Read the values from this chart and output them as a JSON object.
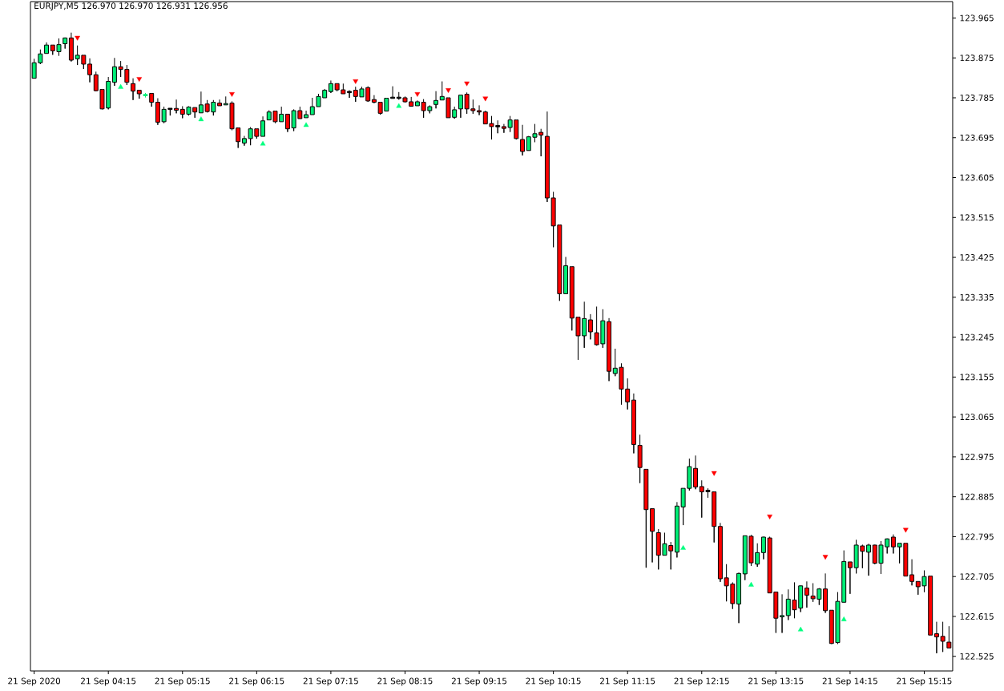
{
  "chart_data": {
    "type": "candlestick",
    "title": "EURJPY,M5 126.970 126.970 126.931 126.956",
    "x": [
      "2020-09-21T03:15",
      "2020-09-21T03:20",
      "2020-09-21T03:25",
      "2020-09-21T03:30",
      "2020-09-21T03:35",
      "2020-09-21T03:40",
      "2020-09-21T03:45",
      "2020-09-21T03:50",
      "2020-09-21T03:55",
      "2020-09-21T04:00",
      "2020-09-21T04:05",
      "2020-09-21T04:10",
      "2020-09-21T04:15",
      "2020-09-21T04:20",
      "2020-09-21T04:25",
      "2020-09-21T04:30",
      "2020-09-21T04:35",
      "2020-09-21T04:40",
      "2020-09-21T04:45",
      "2020-09-21T04:50",
      "2020-09-21T04:55",
      "2020-09-21T05:00",
      "2020-09-21T05:05",
      "2020-09-21T05:10",
      "2020-09-21T05:15",
      "2020-09-21T05:20",
      "2020-09-21T05:25",
      "2020-09-21T05:30",
      "2020-09-21T05:35",
      "2020-09-21T05:40",
      "2020-09-21T05:45",
      "2020-09-21T05:50",
      "2020-09-21T05:55",
      "2020-09-21T06:00",
      "2020-09-21T06:05",
      "2020-09-21T06:10",
      "2020-09-21T06:15",
      "2020-09-21T06:20",
      "2020-09-21T06:25",
      "2020-09-21T06:30",
      "2020-09-21T06:35",
      "2020-09-21T06:40",
      "2020-09-21T06:45",
      "2020-09-21T06:50",
      "2020-09-21T06:55",
      "2020-09-21T07:00",
      "2020-09-21T07:05",
      "2020-09-21T07:10",
      "2020-09-21T07:15",
      "2020-09-21T07:20",
      "2020-09-21T07:25",
      "2020-09-21T07:30",
      "2020-09-21T07:35",
      "2020-09-21T07:40",
      "2020-09-21T07:45",
      "2020-09-21T07:50",
      "2020-09-21T07:55",
      "2020-09-21T08:00",
      "2020-09-21T08:05",
      "2020-09-21T08:10",
      "2020-09-21T08:15",
      "2020-09-21T08:20",
      "2020-09-21T08:25",
      "2020-09-21T08:30",
      "2020-09-21T08:35",
      "2020-09-21T08:40",
      "2020-09-21T08:45",
      "2020-09-21T08:50",
      "2020-09-21T08:55",
      "2020-09-21T09:00",
      "2020-09-21T09:05",
      "2020-09-21T09:10",
      "2020-09-21T09:15",
      "2020-09-21T09:20",
      "2020-09-21T09:25",
      "2020-09-21T09:30",
      "2020-09-21T09:35",
      "2020-09-21T09:40",
      "2020-09-21T09:45",
      "2020-09-21T09:50",
      "2020-09-21T09:55",
      "2020-09-21T10:00",
      "2020-09-21T10:05",
      "2020-09-21T10:10",
      "2020-09-21T10:15",
      "2020-09-21T10:20",
      "2020-09-21T10:25",
      "2020-09-21T10:30",
      "2020-09-21T10:35",
      "2020-09-21T10:40",
      "2020-09-21T10:45",
      "2020-09-21T10:50",
      "2020-09-21T10:55",
      "2020-09-21T11:00",
      "2020-09-21T11:05",
      "2020-09-21T11:10",
      "2020-09-21T11:15",
      "2020-09-21T11:20",
      "2020-09-21T11:25",
      "2020-09-21T11:30",
      "2020-09-21T11:35",
      "2020-09-21T11:40",
      "2020-09-21T11:45",
      "2020-09-21T11:50",
      "2020-09-21T11:55",
      "2020-09-21T12:00",
      "2020-09-21T12:05",
      "2020-09-21T12:10",
      "2020-09-21T12:15",
      "2020-09-21T12:20",
      "2020-09-21T12:25",
      "2020-09-21T12:30",
      "2020-09-21T12:35",
      "2020-09-21T12:40",
      "2020-09-21T12:45",
      "2020-09-21T12:50",
      "2020-09-21T12:55",
      "2020-09-21T13:00",
      "2020-09-21T13:05",
      "2020-09-21T13:10",
      "2020-09-21T13:15",
      "2020-09-21T13:20",
      "2020-09-21T13:25",
      "2020-09-21T13:30",
      "2020-09-21T13:35",
      "2020-09-21T13:40",
      "2020-09-21T13:45",
      "2020-09-21T13:50",
      "2020-09-21T13:55",
      "2020-09-21T14:00",
      "2020-09-21T14:05",
      "2020-09-21T14:10",
      "2020-09-21T14:15",
      "2020-09-21T14:20",
      "2020-09-21T14:25",
      "2020-09-21T14:30",
      "2020-09-21T14:35",
      "2020-09-21T14:40",
      "2020-09-21T14:45",
      "2020-09-21T14:50",
      "2020-09-21T14:55",
      "2020-09-21T15:00",
      "2020-09-21T15:05",
      "2020-09-21T15:10",
      "2020-09-21T15:15",
      "2020-09-21T15:20",
      "2020-09-21T15:25",
      "2020-09-21T15:30",
      "2020-09-21T15:35"
    ],
    "ohlc": [
      [
        123.829,
        123.873,
        123.829,
        123.864
      ],
      [
        123.864,
        123.894,
        123.861,
        123.884
      ],
      [
        123.885,
        123.91,
        123.885,
        123.904
      ],
      [
        123.904,
        123.904,
        123.882,
        123.891
      ],
      [
        123.889,
        123.919,
        123.88,
        123.905
      ],
      [
        123.907,
        123.921,
        123.896,
        123.92
      ],
      [
        123.92,
        123.932,
        123.867,
        123.87
      ],
      [
        123.873,
        123.903,
        123.859,
        123.881
      ],
      [
        123.881,
        123.881,
        123.85,
        123.861
      ],
      [
        123.861,
        123.874,
        123.82,
        123.837
      ],
      [
        123.837,
        123.844,
        123.8,
        123.801
      ],
      [
        123.804,
        123.804,
        123.759,
        123.76
      ],
      [
        123.762,
        123.832,
        123.759,
        123.822
      ],
      [
        123.82,
        123.875,
        123.812,
        123.855
      ],
      [
        123.855,
        123.868,
        123.832,
        123.849
      ],
      [
        123.849,
        123.859,
        123.814,
        123.82
      ],
      [
        123.817,
        123.829,
        123.78,
        123.8
      ],
      [
        123.802,
        123.802,
        123.783,
        123.794
      ],
      [
        123.791,
        123.796,
        123.786,
        123.791
      ],
      [
        123.795,
        123.795,
        123.765,
        123.775
      ],
      [
        123.775,
        123.784,
        123.724,
        123.73
      ],
      [
        123.731,
        123.765,
        123.728,
        123.759
      ],
      [
        123.76,
        123.76,
        123.745,
        123.76
      ],
      [
        123.761,
        123.781,
        123.75,
        123.757
      ],
      [
        123.759,
        123.766,
        123.739,
        123.748
      ],
      [
        123.748,
        123.766,
        123.745,
        123.764
      ],
      [
        123.763,
        123.763,
        123.74,
        123.753
      ],
      [
        123.751,
        123.799,
        123.751,
        123.769
      ],
      [
        123.771,
        123.78,
        123.752,
        123.754
      ],
      [
        123.753,
        123.78,
        123.745,
        123.775
      ],
      [
        123.773,
        123.781,
        123.767,
        123.767
      ],
      [
        123.769,
        123.788,
        123.769,
        123.772
      ],
      [
        123.773,
        123.777,
        123.712,
        123.715
      ],
      [
        123.717,
        123.717,
        123.672,
        123.686
      ],
      [
        123.683,
        123.699,
        123.677,
        123.693
      ],
      [
        123.693,
        123.719,
        123.678,
        123.715
      ],
      [
        123.715,
        123.715,
        123.693,
        123.698
      ],
      [
        123.698,
        123.743,
        123.698,
        123.733
      ],
      [
        123.735,
        123.757,
        123.735,
        123.753
      ],
      [
        123.755,
        123.755,
        123.728,
        123.731
      ],
      [
        123.731,
        123.765,
        123.731,
        123.748
      ],
      [
        123.748,
        123.748,
        123.708,
        123.715
      ],
      [
        123.717,
        123.759,
        123.71,
        123.756
      ],
      [
        123.756,
        123.765,
        123.738,
        123.738
      ],
      [
        123.74,
        123.756,
        123.74,
        123.747
      ],
      [
        123.747,
        123.785,
        123.747,
        123.765
      ],
      [
        123.765,
        123.794,
        123.765,
        123.788
      ],
      [
        123.785,
        123.805,
        123.785,
        123.802
      ],
      [
        123.799,
        123.824,
        123.796,
        123.817
      ],
      [
        123.817,
        123.817,
        123.8,
        123.803
      ],
      [
        123.803,
        123.817,
        123.794,
        123.794
      ],
      [
        123.798,
        123.802,
        123.785,
        123.798
      ],
      [
        123.802,
        123.81,
        123.776,
        123.788
      ],
      [
        123.787,
        123.81,
        123.787,
        123.805
      ],
      [
        123.808,
        123.811,
        123.776,
        123.778
      ],
      [
        123.781,
        123.791,
        123.773,
        123.775
      ],
      [
        123.775,
        123.775,
        123.747,
        123.75
      ],
      [
        123.755,
        123.784,
        123.755,
        123.784
      ],
      [
        123.785,
        123.811,
        123.785,
        123.785
      ],
      [
        123.785,
        123.798,
        123.781,
        123.785
      ],
      [
        123.785,
        123.788,
        123.774,
        123.776
      ],
      [
        123.776,
        123.787,
        123.766,
        123.766
      ],
      [
        123.767,
        123.779,
        123.767,
        123.776
      ],
      [
        123.775,
        123.782,
        123.74,
        123.756
      ],
      [
        123.756,
        123.768,
        123.75,
        123.765
      ],
      [
        123.77,
        123.8,
        123.761,
        123.779
      ],
      [
        123.78,
        123.822,
        123.78,
        123.788
      ],
      [
        123.785,
        123.785,
        123.74,
        123.74
      ],
      [
        123.741,
        123.765,
        123.738,
        123.758
      ],
      [
        123.76,
        123.791,
        123.74,
        123.791
      ],
      [
        123.793,
        123.797,
        123.749,
        123.76
      ],
      [
        123.76,
        123.781,
        123.749,
        123.756
      ],
      [
        123.756,
        123.768,
        123.746,
        123.753
      ],
      [
        123.753,
        123.756,
        123.726,
        123.726
      ],
      [
        123.727,
        123.744,
        123.691,
        123.72
      ],
      [
        123.721,
        123.734,
        123.705,
        123.721
      ],
      [
        123.72,
        123.726,
        123.706,
        123.716
      ],
      [
        123.718,
        123.744,
        123.708,
        123.735
      ],
      [
        123.735,
        123.735,
        123.691,
        123.693
      ],
      [
        123.691,
        123.724,
        123.655,
        123.664
      ],
      [
        123.666,
        123.699,
        123.666,
        123.697
      ],
      [
        123.696,
        123.726,
        123.685,
        123.704
      ],
      [
        123.707,
        123.715,
        123.653,
        123.701
      ],
      [
        123.698,
        123.754,
        123.55,
        123.559
      ],
      [
        123.559,
        123.573,
        123.448,
        123.496
      ],
      [
        123.498,
        123.498,
        123.327,
        123.343
      ],
      [
        123.343,
        123.426,
        123.343,
        123.406
      ],
      [
        123.404,
        123.404,
        123.26,
        123.288
      ],
      [
        123.29,
        123.29,
        123.194,
        123.248
      ],
      [
        123.248,
        123.325,
        123.221,
        123.287
      ],
      [
        123.284,
        123.297,
        123.24,
        123.257
      ],
      [
        123.255,
        123.314,
        123.226,
        123.228
      ],
      [
        123.23,
        123.308,
        123.221,
        123.282
      ],
      [
        123.28,
        123.288,
        123.146,
        123.168
      ],
      [
        123.163,
        123.219,
        123.157,
        123.175
      ],
      [
        123.177,
        123.186,
        123.093,
        123.128
      ],
      [
        123.128,
        123.152,
        123.082,
        123.099
      ],
      [
        123.103,
        123.118,
        122.983,
        123.003
      ],
      [
        123.001,
        123.025,
        122.916,
        122.951
      ],
      [
        122.947,
        122.947,
        122.725,
        122.856
      ],
      [
        122.858,
        122.858,
        122.737,
        122.807
      ],
      [
        122.804,
        122.812,
        122.721,
        122.753
      ],
      [
        122.753,
        122.804,
        122.753,
        122.779
      ],
      [
        122.775,
        122.783,
        122.721,
        122.763
      ],
      [
        122.76,
        122.873,
        122.748,
        122.864
      ],
      [
        122.862,
        122.904,
        122.821,
        122.904
      ],
      [
        122.904,
        122.971,
        122.899,
        122.953
      ],
      [
        122.949,
        122.978,
        122.902,
        122.907
      ],
      [
        122.908,
        122.922,
        122.838,
        122.896
      ],
      [
        122.898,
        122.904,
        122.883,
        122.898
      ],
      [
        122.896,
        122.896,
        122.782,
        122.818
      ],
      [
        122.818,
        122.826,
        122.693,
        122.7
      ],
      [
        122.702,
        122.733,
        122.649,
        122.684
      ],
      [
        122.688,
        122.692,
        122.632,
        122.644
      ],
      [
        122.643,
        122.714,
        122.6,
        122.712
      ],
      [
        122.711,
        122.797,
        122.697,
        122.797
      ],
      [
        122.796,
        122.799,
        122.729,
        122.736
      ],
      [
        122.733,
        122.78,
        122.727,
        122.759
      ],
      [
        122.759,
        122.795,
        122.744,
        122.794
      ],
      [
        122.792,
        122.795,
        122.668,
        122.668
      ],
      [
        122.67,
        122.67,
        122.578,
        122.611
      ],
      [
        122.614,
        122.665,
        122.578,
        122.617
      ],
      [
        122.617,
        122.676,
        122.607,
        122.654
      ],
      [
        122.652,
        122.692,
        122.611,
        122.63
      ],
      [
        122.634,
        122.685,
        122.625,
        122.684
      ],
      [
        122.679,
        122.694,
        122.635,
        122.663
      ],
      [
        122.661,
        122.69,
        122.648,
        122.655
      ],
      [
        122.654,
        122.679,
        122.641,
        122.677
      ],
      [
        122.677,
        122.712,
        122.623,
        122.628
      ],
      [
        122.629,
        122.629,
        122.553,
        122.554
      ],
      [
        122.556,
        122.67,
        122.553,
        122.649
      ],
      [
        122.647,
        122.764,
        122.647,
        122.739
      ],
      [
        122.738,
        122.738,
        122.666,
        122.725
      ],
      [
        122.725,
        122.788,
        122.712,
        122.776
      ],
      [
        122.774,
        122.777,
        122.724,
        122.762
      ],
      [
        122.76,
        122.779,
        122.707,
        122.776
      ],
      [
        122.776,
        122.777,
        122.733,
        122.735
      ],
      [
        122.735,
        122.785,
        122.711,
        122.776
      ],
      [
        122.772,
        122.791,
        122.757,
        122.79
      ],
      [
        122.794,
        122.8,
        122.757,
        122.772
      ],
      [
        122.772,
        122.78,
        122.735,
        122.78
      ],
      [
        122.78,
        122.78,
        122.706,
        122.706
      ],
      [
        122.709,
        122.744,
        122.685,
        122.694
      ],
      [
        122.694,
        122.694,
        122.664,
        122.682
      ],
      [
        122.684,
        122.719,
        122.67,
        122.705
      ],
      [
        122.706,
        122.706,
        122.573,
        122.573
      ],
      [
        122.576,
        122.603,
        122.532,
        122.569
      ],
      [
        122.57,
        122.603,
        122.535,
        122.559
      ],
      [
        122.557,
        122.593,
        122.544,
        122.544
      ]
    ],
    "colors": [
      "#00ee76",
      "#00ee76",
      "#00ee76",
      "#ff0000",
      "#00ee76",
      "#00ee76",
      "#ff0000",
      "#00ee76",
      "#ff0000",
      "#ff0000",
      "#ff0000",
      "#ff0000",
      "#00ee76",
      "#00ee76",
      "#ff0000",
      "#ff0000",
      "#ff0000",
      "#ff0000",
      "#00ee76",
      "#ff0000",
      "#ff0000",
      "#00ee76",
      "#000000",
      "#ff0000",
      "#ff0000",
      "#00ee76",
      "#ff0000",
      "#00ee76",
      "#ff0000",
      "#00ee76",
      "#ff0000",
      "#00ee76",
      "#ff0000",
      "#ff0000",
      "#00ee76",
      "#00ee76",
      "#ff0000",
      "#00ee76",
      "#00ee76",
      "#ff0000",
      "#00ee76",
      "#ff0000",
      "#00ee76",
      "#ff0000",
      "#00ee76",
      "#00ee76",
      "#00ee76",
      "#00ee76",
      "#00ee76",
      "#ff0000",
      "#ff0000",
      "#000000",
      "#ff0000",
      "#00ee76",
      "#ff0000",
      "#ff0000",
      "#ff0000",
      "#00ee76",
      "#000000",
      "#000000",
      "#ff0000",
      "#ff0000",
      "#00ee76",
      "#ff0000",
      "#00ee76",
      "#00ee76",
      "#00ee76",
      "#ff0000",
      "#00ee76",
      "#00ee76",
      "#ff0000",
      "#ff0000",
      "#ff0000",
      "#ff0000",
      "#ff0000",
      "#000000",
      "#ff0000",
      "#00ee76",
      "#ff0000",
      "#ff0000",
      "#00ee76",
      "#00ee76",
      "#ff0000",
      "#ff0000",
      "#ff0000",
      "#ff0000",
      "#00ee76",
      "#ff0000",
      "#ff0000",
      "#00ee76",
      "#ff0000",
      "#ff0000",
      "#00ee76",
      "#ff0000",
      "#00ee76",
      "#ff0000",
      "#ff0000",
      "#ff0000",
      "#ff0000",
      "#ff0000",
      "#ff0000",
      "#ff0000",
      "#00ee76",
      "#ff0000",
      "#00ee76",
      "#00ee76",
      "#00ee76",
      "#ff0000",
      "#ff0000",
      "#000000",
      "#ff0000",
      "#ff0000",
      "#ff0000",
      "#ff0000",
      "#00ee76",
      "#00ee76",
      "#ff0000",
      "#00ee76",
      "#00ee76",
      "#ff0000",
      "#ff0000",
      "#00ee76",
      "#00ee76",
      "#ff0000",
      "#00ee76",
      "#ff0000",
      "#ff0000",
      "#00ee76",
      "#ff0000",
      "#ff0000",
      "#00ee76",
      "#00ee76",
      "#ff0000",
      "#00ee76",
      "#ff0000",
      "#00ee76",
      "#ff0000",
      "#00ee76",
      "#00ee76",
      "#ff0000",
      "#00ee76",
      "#ff0000",
      "#ff0000",
      "#ff0000",
      "#00ee76",
      "#ff0000",
      "#ff0000",
      "#ff0000",
      "#ff0000"
    ],
    "series": [
      {
        "type": "scatter",
        "color": "#ff0000",
        "marker": "triangle",
        "x": [
          "2020-09-21T03:50",
          "2020-09-21T04:40",
          "2020-09-21T05:55",
          "2020-09-21T07:35",
          "2020-09-21T08:25",
          "2020-09-21T08:50",
          "2020-09-21T09:05",
          "2020-09-21T09:20",
          "2020-09-21T12:25",
          "2020-09-21T13:10",
          "2020-09-21T13:55",
          "2020-09-21T15:00"
        ],
        "values": [
          123.921,
          123.828,
          123.794,
          123.823,
          123.794,
          123.803,
          123.818,
          123.784,
          122.939,
          122.841,
          122.75,
          122.811
        ]
      },
      {
        "type": "scatter",
        "color": "#00ff7f",
        "marker": "triangle",
        "x": [
          "2020-09-21T04:25",
          "2020-09-21T05:30",
          "2020-09-21T06:20",
          "2020-09-21T06:55",
          "2020-09-21T08:10",
          "2020-09-21T12:00",
          "2020-09-21T12:55",
          "2020-09-21T13:35",
          "2020-09-21T14:10"
        ],
        "values": [
          123.809,
          123.736,
          123.681,
          123.723,
          123.766,
          122.769,
          122.686,
          122.585,
          122.608
        ]
      }
    ],
    "xlim": [
      "2020-09-21T03:12",
      "2020-09-21T15:38"
    ],
    "xticks": [
      {
        "value": "2020-09-21T03:15",
        "label": "21 Sep 2020"
      },
      {
        "value": "2020-09-21T04:15",
        "label": "21 Sep 04:15"
      },
      {
        "value": "2020-09-21T05:15",
        "label": "21 Sep 05:15"
      },
      {
        "value": "2020-09-21T06:15",
        "label": "21 Sep 06:15"
      },
      {
        "value": "2020-09-21T07:15",
        "label": "21 Sep 07:15"
      },
      {
        "value": "2020-09-21T08:15",
        "label": "21 Sep 08:15"
      },
      {
        "value": "2020-09-21T09:15",
        "label": "21 Sep 09:15"
      },
      {
        "value": "2020-09-21T10:15",
        "label": "21 Sep 10:15"
      },
      {
        "value": "2020-09-21T11:15",
        "label": "21 Sep 11:15"
      },
      {
        "value": "2020-09-21T12:15",
        "label": "21 Sep 12:15"
      },
      {
        "value": "2020-09-21T13:15",
        "label": "21 Sep 13:15"
      },
      {
        "value": "2020-09-21T14:15",
        "label": "21 Sep 14:15"
      },
      {
        "value": "2020-09-21T15:15",
        "label": "21 Sep 15:15"
      }
    ],
    "ylim": [
      122.492,
      124.002
    ],
    "yticks": [
      122.525,
      122.615,
      122.705,
      122.795,
      122.885,
      122.975,
      123.065,
      123.155,
      123.245,
      123.335,
      123.425,
      123.515,
      123.605,
      123.695,
      123.785,
      123.875,
      123.965
    ]
  }
}
